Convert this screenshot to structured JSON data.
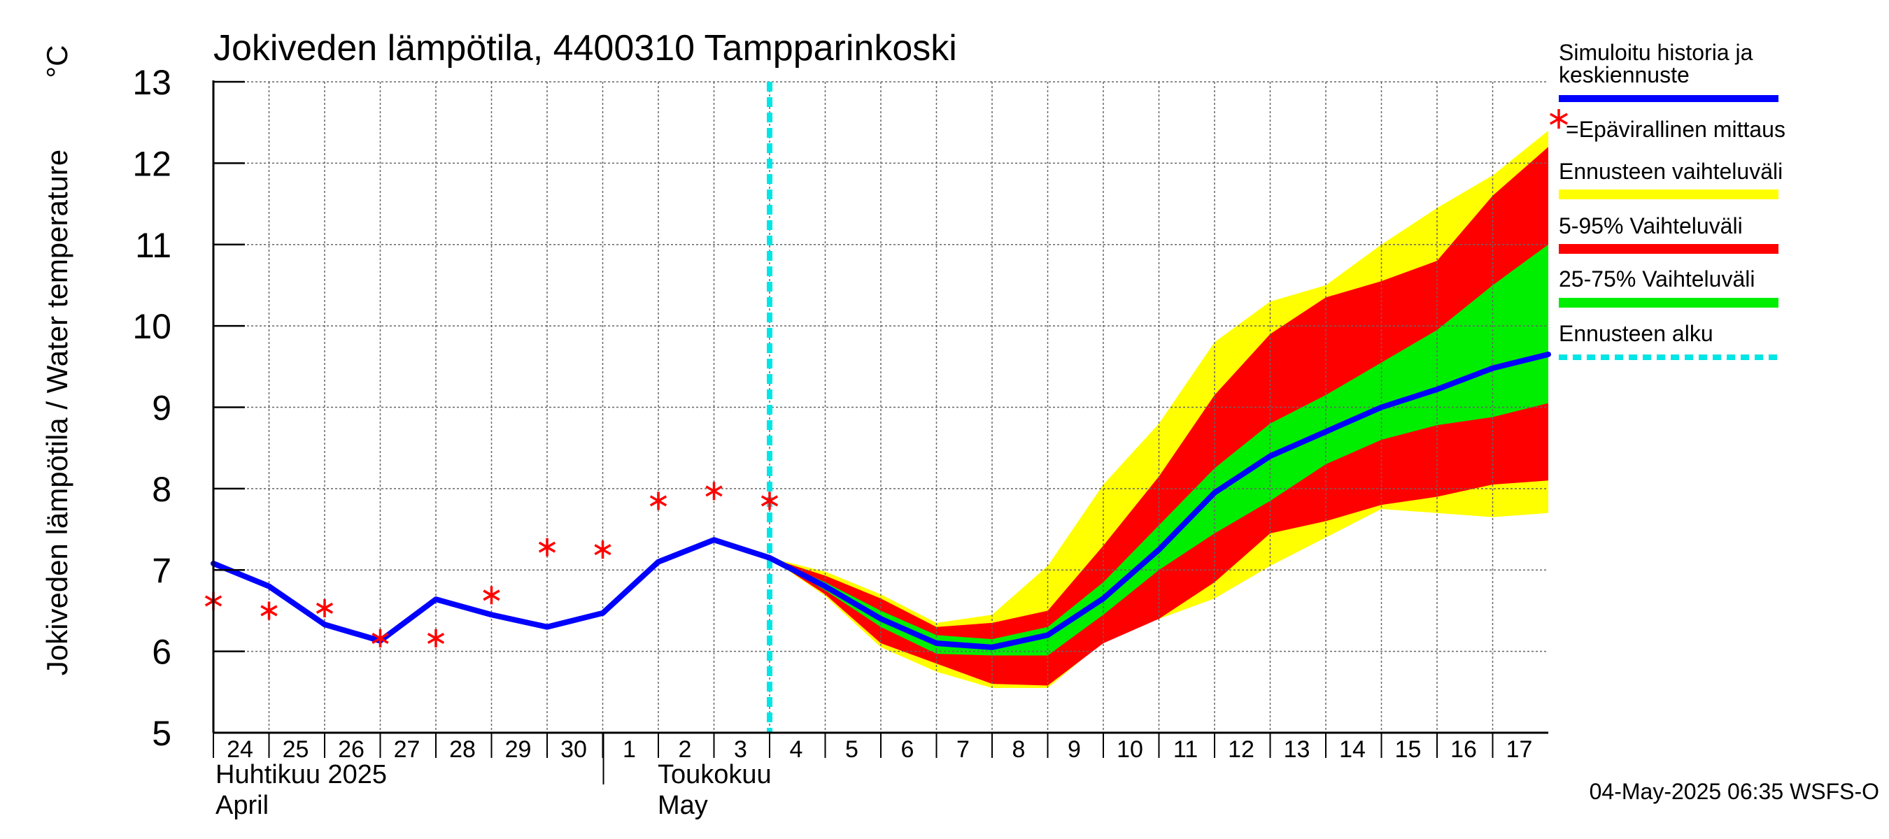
{
  "chart_data": {
    "type": "line",
    "title": "Jokiveden lämpötila, 4400310 Tampparinkoski",
    "ylabel": "Jokiveden lämpötila / Water temperature",
    "yunit": "°C",
    "ylim": [
      5,
      13
    ],
    "yticks": [
      5,
      6,
      7,
      8,
      9,
      10,
      11,
      12,
      13
    ],
    "xlim": [
      24,
      48
    ],
    "day_ticks": [
      {
        "x": 24,
        "label": "24"
      },
      {
        "x": 25,
        "label": "25"
      },
      {
        "x": 26,
        "label": "26"
      },
      {
        "x": 27,
        "label": "27"
      },
      {
        "x": 28,
        "label": "28"
      },
      {
        "x": 29,
        "label": "29"
      },
      {
        "x": 30,
        "label": "30"
      },
      {
        "x": 31,
        "label": "1"
      },
      {
        "x": 32,
        "label": "2"
      },
      {
        "x": 33,
        "label": "3"
      },
      {
        "x": 34,
        "label": "4"
      },
      {
        "x": 35,
        "label": "5"
      },
      {
        "x": 36,
        "label": "6"
      },
      {
        "x": 37,
        "label": "7"
      },
      {
        "x": 38,
        "label": "8"
      },
      {
        "x": 39,
        "label": "9"
      },
      {
        "x": 40,
        "label": "10"
      },
      {
        "x": 41,
        "label": "11"
      },
      {
        "x": 42,
        "label": "12"
      },
      {
        "x": 43,
        "label": "13"
      },
      {
        "x": 44,
        "label": "14"
      },
      {
        "x": 45,
        "label": "15"
      },
      {
        "x": 46,
        "label": "16"
      },
      {
        "x": 47,
        "label": "17"
      }
    ],
    "month_labels": {
      "april_fi": "Huhtikuu  2025",
      "april_en": "April",
      "may_fi": "Toukokuu",
      "may_en": "May"
    },
    "month_boundary_x": 31,
    "forecast_start_x": 34,
    "series": [
      {
        "name": "Simuloitu historia ja keskiennuste",
        "color": "#0000ff",
        "x": [
          24,
          25,
          26,
          27,
          28,
          29,
          30,
          31,
          32,
          33,
          34,
          35,
          36,
          37,
          38,
          39,
          40,
          41,
          42,
          43,
          44,
          45,
          46,
          47,
          48
        ],
        "values": [
          7.08,
          6.8,
          6.33,
          6.13,
          6.64,
          6.45,
          6.3,
          6.47,
          7.1,
          7.37,
          7.15,
          6.8,
          6.4,
          6.1,
          6.05,
          6.2,
          6.65,
          7.25,
          7.95,
          8.4,
          8.7,
          9.0,
          9.22,
          9.48,
          9.65
        ]
      }
    ],
    "measurements": {
      "name": "Epävirallinen mittaus",
      "color": "#ff0000",
      "x": [
        24,
        25,
        26,
        27,
        28,
        29,
        30,
        31,
        32,
        33,
        34
      ],
      "values": [
        6.62,
        6.5,
        6.53,
        6.16,
        6.16,
        6.69,
        7.28,
        7.25,
        7.85,
        7.97,
        7.85
      ]
    },
    "bands": [
      {
        "name": "Ennusteen vaihteluväli",
        "color": "#ffff00",
        "x": [
          34,
          35,
          36,
          37,
          38,
          39,
          40,
          41,
          42,
          43,
          44,
          45,
          46,
          47,
          48
        ],
        "upper": [
          7.15,
          6.98,
          6.7,
          6.35,
          6.45,
          7.05,
          8.05,
          8.8,
          9.8,
          10.3,
          10.5,
          11.0,
          11.45,
          11.85,
          12.4
        ],
        "lower": [
          7.15,
          6.68,
          6.05,
          5.75,
          5.55,
          5.55,
          6.12,
          6.4,
          6.65,
          7.05,
          7.4,
          7.75,
          7.7,
          7.65,
          7.7
        ]
      },
      {
        "name": "5-95% Vaihteluväli",
        "color": "#ff0000",
        "x": [
          34,
          35,
          36,
          37,
          38,
          39,
          40,
          41,
          42,
          43,
          44,
          45,
          46,
          47,
          48
        ],
        "upper": [
          7.15,
          6.93,
          6.65,
          6.3,
          6.35,
          6.5,
          7.3,
          8.15,
          9.15,
          9.9,
          10.35,
          10.55,
          10.8,
          11.6,
          12.2
        ],
        "lower": [
          7.15,
          6.7,
          6.1,
          5.85,
          5.6,
          5.58,
          6.1,
          6.4,
          6.85,
          7.45,
          7.6,
          7.8,
          7.9,
          8.05,
          8.1
        ]
      },
      {
        "name": "25-75% Vaihteluväli",
        "color": "#00ee00",
        "x": [
          34,
          35,
          36,
          37,
          38,
          39,
          40,
          41,
          42,
          43,
          44,
          45,
          46,
          47,
          48
        ],
        "upper": [
          7.15,
          6.85,
          6.5,
          6.2,
          6.15,
          6.3,
          6.85,
          7.55,
          8.25,
          8.8,
          9.15,
          9.55,
          9.95,
          10.5,
          11.0
        ],
        "lower": [
          7.15,
          6.75,
          6.3,
          5.97,
          5.95,
          5.95,
          6.45,
          7.0,
          7.45,
          7.85,
          8.3,
          8.6,
          8.78,
          8.88,
          9.05
        ]
      }
    ],
    "legend": {
      "history": "Simuloitu historia ja\nkeskiennuste",
      "history_line1": "Simuloitu historia ja",
      "history_line2": "keskiennuste",
      "measurement": "=Epävirallinen mittaus",
      "range": "Ennusteen vaihteluväli",
      "p5_95": "5-95% Vaihteluväli",
      "p25_75": "25-75% Vaihteluväli",
      "forecast_start": "Ennusteen alku",
      "forecast_start_color": "#00e5e5"
    },
    "timestamp": "04-May-2025 06:35 WSFS-O"
  }
}
